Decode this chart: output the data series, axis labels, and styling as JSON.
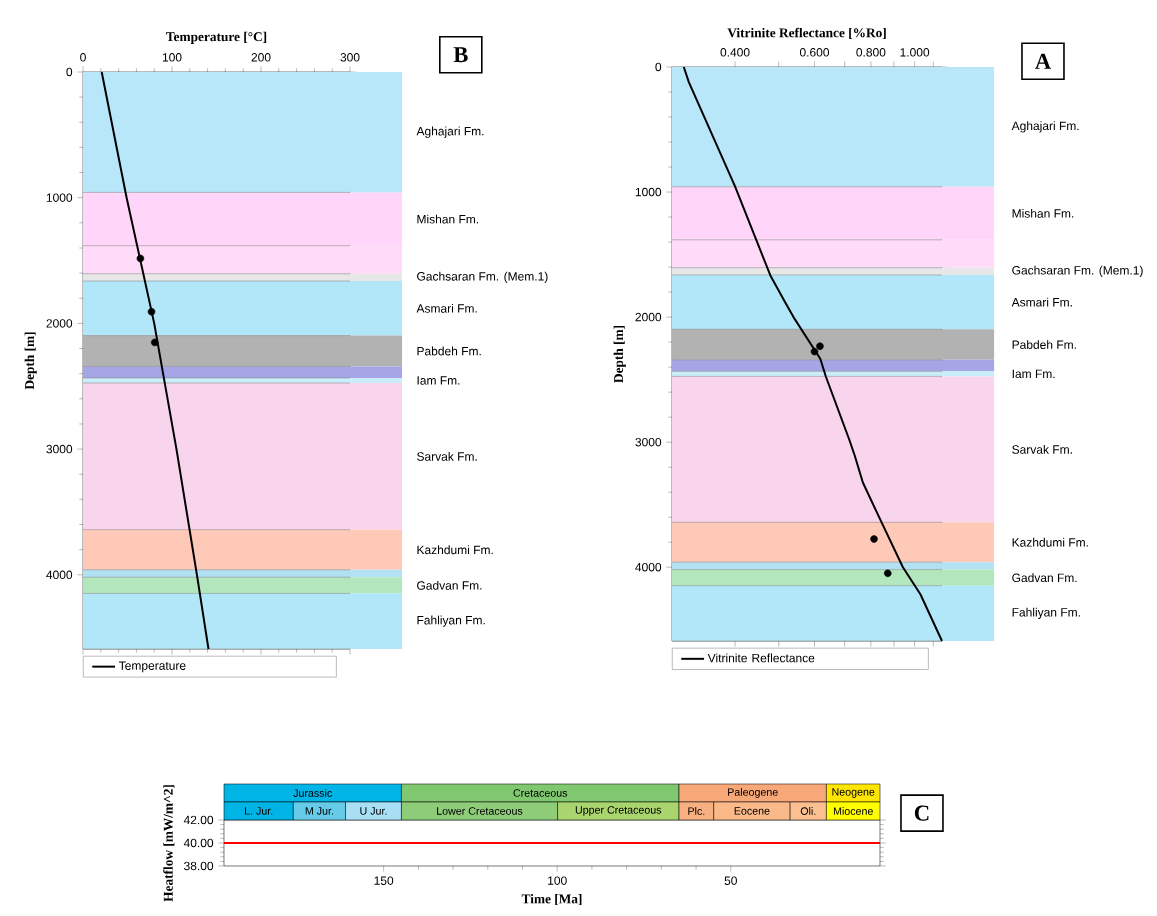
{
  "chart_data": [
    {
      "type": "line",
      "xlabel": "Temperature [°C]",
      "ylabel": "Depth [m]",
      "xlim": [
        0,
        300
      ],
      "xticks": [
        0,
        100,
        200,
        300
      ],
      "ylim": [
        4590,
        0
      ],
      "yticks": [
        0,
        1000,
        2000,
        3000,
        4000
      ],
      "legend": "bottom",
      "annotations": [
        "B"
      ],
      "series": [
        {
          "name": "Temperature",
          "color": "#000000",
          "x": [
            21,
            49,
            80,
            105,
            128,
            141
          ],
          "values": [
            0,
            1000,
            2000,
            3000,
            4000,
            4590
          ]
        },
        {
          "type": "scatter",
          "color": "#000000",
          "x": [
            64.5,
            77,
            80.6
          ],
          "values": [
            1483,
            1907,
            2151
          ]
        }
      ],
      "bands": [
        {
          "axis": "y",
          "from": 0,
          "to": 958,
          "label": "Aghajari Fm.",
          "color": "#b8e7f9"
        },
        {
          "axis": "y",
          "from": 958,
          "to": 1382,
          "label": "Mishan Fm.",
          "color": "#ffd5f9"
        },
        {
          "axis": "y",
          "from": 1382,
          "to": 1605,
          "color": "#ffdbf9"
        },
        {
          "axis": "y",
          "from": 1605,
          "to": 1663,
          "label": "Gachsaran Fm. (Mem.1)",
          "color": "#e7e7e7"
        },
        {
          "axis": "y",
          "from": 1663,
          "to": 2097,
          "label": "Asmari Fm.",
          "color": "#b2e7f9"
        },
        {
          "axis": "y",
          "from": 2097,
          "to": 2342,
          "label": "Pabdeh Fm.",
          "color": "#b2b2b2"
        },
        {
          "axis": "y",
          "from": 2342,
          "to": 2434,
          "color": "#a6a6e7"
        },
        {
          "axis": "y",
          "from": 2434,
          "to": 2474,
          "label": "Iam Fm.",
          "color": "#c9edf9"
        },
        {
          "axis": "y",
          "from": 2474,
          "to": 3641,
          "label": "Sarvak Fm.",
          "color": "#f9d5ed"
        },
        {
          "axis": "y",
          "from": 3641,
          "to": 3960,
          "label": "Kazhdumi Fm.",
          "color": "#ffc9b8"
        },
        {
          "axis": "y",
          "from": 3960,
          "to": 4019,
          "color": "#b2e1f3"
        },
        {
          "axis": "y",
          "from": 4019,
          "to": 4148,
          "label": "Gadvan Fm.",
          "color": "#b2e7be"
        },
        {
          "axis": "y",
          "from": 4148,
          "to": 4590,
          "label": "Fahliyan Fm.",
          "color": "#b2e7f9"
        }
      ]
    },
    {
      "type": "line",
      "xlabel": "Vitrinite Reflectance [%Ro]",
      "ylabel": "Depth [m]",
      "log": "x",
      "xlim": [
        0.29,
        1.15
      ],
      "xticks": [
        {
          "value": 0.4,
          "label": "0.400"
        },
        {
          "value": 0.5,
          "label": null
        },
        {
          "value": 0.6,
          "label": "0.600"
        },
        {
          "value": 0.7,
          "label": null
        },
        {
          "value": 0.8,
          "label": "0.800"
        },
        {
          "value": 0.9,
          "label": null
        },
        {
          "value": 1.0,
          "label": "1.000"
        },
        {
          "value": 1.1,
          "label": null
        }
      ],
      "ylim": [
        4590,
        0
      ],
      "yticks": [
        0,
        1000,
        2000,
        3000,
        4000
      ],
      "legend": "bottom",
      "annotations": [
        "A"
      ],
      "series": [
        {
          "name": "Vitrinite Reflectance",
          "color": "#000000",
          "x": [
            0.308,
            0.316,
            0.4,
            0.479,
            0.515,
            0.539,
            0.618,
            0.636,
            0.716,
            0.737,
            0.768,
            0.848,
            0.942,
            1.03,
            1.15
          ],
          "values": [
            0,
            121,
            954,
            1667,
            1874,
            2000,
            2333,
            2477,
            2977,
            3109,
            3323,
            3654,
            4000,
            4216,
            4590
          ]
        },
        {
          "type": "scatter",
          "color": "#000000",
          "x": [
            0.6,
            0.617,
            0.813,
            0.872
          ],
          "values": [
            2276,
            2233,
            3775,
            4049
          ]
        }
      ],
      "bands": [
        {
          "axis": "y",
          "from": 0,
          "to": 958,
          "label": "Aghajari Fm.",
          "color": "#b8e7f9"
        },
        {
          "axis": "y",
          "from": 958,
          "to": 1382,
          "label": "Mishan Fm.",
          "color": "#ffd5f9"
        },
        {
          "axis": "y",
          "from": 1382,
          "to": 1605,
          "color": "#ffdbf9"
        },
        {
          "axis": "y",
          "from": 1605,
          "to": 1663,
          "label": "Gachsaran Fm. (Mem.1)",
          "color": "#e7e7e7"
        },
        {
          "axis": "y",
          "from": 1663,
          "to": 2097,
          "label": "Asmari Fm.",
          "color": "#b2e7f9"
        },
        {
          "axis": "y",
          "from": 2097,
          "to": 2342,
          "label": "Pabdeh Fm.",
          "color": "#b2b2b2"
        },
        {
          "axis": "y",
          "from": 2342,
          "to": 2434,
          "color": "#a6a6e7"
        },
        {
          "axis": "y",
          "from": 2434,
          "to": 2474,
          "label": "Iam Fm.",
          "color": "#c9edf9"
        },
        {
          "axis": "y",
          "from": 2474,
          "to": 3641,
          "label": "Sarvak Fm.",
          "color": "#f9d5ed"
        },
        {
          "axis": "y",
          "from": 3641,
          "to": 3960,
          "label": "Kazhdumi Fm.",
          "color": "#ffc9b8"
        },
        {
          "axis": "y",
          "from": 3960,
          "to": 4019,
          "color": "#b2e1f3"
        },
        {
          "axis": "y",
          "from": 4019,
          "to": 4148,
          "label": "Gadvan Fm.",
          "color": "#b2e7be"
        },
        {
          "axis": "y",
          "from": 4148,
          "to": 4590,
          "label": "Fahliyan Fm.",
          "color": "#b2e7f9"
        }
      ]
    },
    {
      "type": "line",
      "xlabel": "Time [Ma]",
      "ylabel": "Heatflow [mW/m^2]",
      "xlim": [
        196,
        7
      ],
      "xticks": [
        150,
        100,
        50
      ],
      "ylim": [
        38,
        42
      ],
      "yticks": [
        {
          "value": 38,
          "label": "38.00"
        },
        {
          "value": 40,
          "label": "40.00"
        },
        {
          "value": 42,
          "label": "42.00"
        }
      ],
      "annotations": [
        "C"
      ],
      "series": [
        {
          "color": "#ff0000",
          "x": [
            196,
            7
          ],
          "values": [
            40,
            40
          ]
        }
      ]
    },
    {
      "type": "other",
      "annotations": [
        "Jurassic",
        "Cretaceous",
        "Paleogene",
        "Neogene",
        "L. Jur.",
        "M Jur.",
        "U Jur.",
        "Lower Cretaceous",
        "Upper Cretaceous",
        "Plc.",
        "Eocene",
        "Oli.",
        "Miocene"
      ]
    }
  ]
}
